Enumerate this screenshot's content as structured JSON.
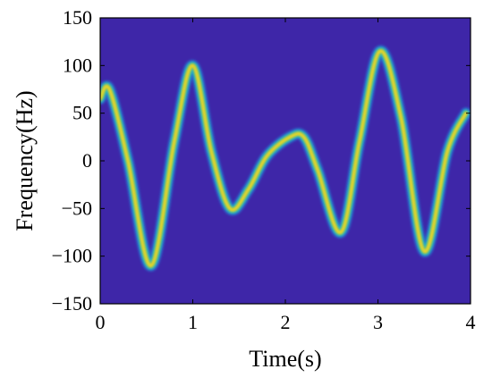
{
  "chart_data": {
    "type": "heatmap",
    "subtype": "time-frequency spectrogram",
    "title": "",
    "xlabel": "Time(s)",
    "ylabel": "Frequency(Hz)",
    "xlim": [
      0,
      4
    ],
    "ylim": [
      -150,
      150
    ],
    "xticks": [
      0,
      1,
      2,
      3,
      4
    ],
    "xtick_labels": [
      "0",
      "1",
      "2",
      "3",
      "4"
    ],
    "yticks": [
      150,
      100,
      50,
      0,
      -50,
      -100,
      -150
    ],
    "ytick_labels": [
      "150",
      "100",
      "50",
      "0",
      "−50",
      "−100",
      "−150"
    ],
    "grid": false,
    "colormap": "parula",
    "background_color": "#3e26a8",
    "ridge": {
      "name": "",
      "x": [
        0.0,
        0.1,
        0.3,
        0.55,
        0.8,
        1.0,
        1.2,
        1.4,
        1.6,
        1.8,
        2.05,
        2.2,
        2.35,
        2.6,
        2.8,
        3.02,
        3.25,
        3.5,
        3.75,
        3.95
      ],
      "y": [
        65,
        75,
        0,
        -110,
        20,
        100,
        10,
        -50,
        -30,
        5,
        25,
        25,
        -10,
        -75,
        20,
        115,
        45,
        -95,
        10,
        50
      ]
    }
  }
}
